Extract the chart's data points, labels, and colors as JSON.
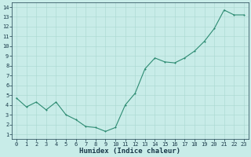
{
  "x": [
    0,
    1,
    2,
    3,
    4,
    5,
    6,
    7,
    8,
    9,
    10,
    11,
    12,
    13,
    14,
    15,
    16,
    17,
    18,
    19,
    20,
    21,
    22,
    23
  ],
  "y": [
    4.7,
    3.8,
    4.3,
    3.5,
    4.3,
    3.0,
    2.5,
    1.8,
    1.7,
    1.3,
    1.7,
    4.0,
    5.2,
    7.7,
    8.8,
    8.4,
    8.3,
    8.8,
    9.5,
    10.5,
    11.8,
    13.7,
    13.2,
    13.2
  ],
  "xlabel": "Humidex (Indice chaleur)",
  "ylim": [
    0.5,
    14.5
  ],
  "xlim": [
    -0.5,
    23.5
  ],
  "yticks": [
    1,
    2,
    3,
    4,
    5,
    6,
    7,
    8,
    9,
    10,
    11,
    12,
    13,
    14
  ],
  "xticks": [
    0,
    1,
    2,
    3,
    4,
    5,
    6,
    7,
    8,
    9,
    10,
    11,
    12,
    13,
    14,
    15,
    16,
    17,
    18,
    19,
    20,
    21,
    22,
    23
  ],
  "line_color": "#2d8b72",
  "bg_color": "#c8ece8",
  "grid_color": "#a8d8d0",
  "tick_color": "#1a3a4a",
  "xlabel_color": "#1a3a4a",
  "tick_fontsize": 5.0,
  "xlabel_fontsize": 6.5,
  "linewidth": 0.8,
  "markersize": 2.0
}
